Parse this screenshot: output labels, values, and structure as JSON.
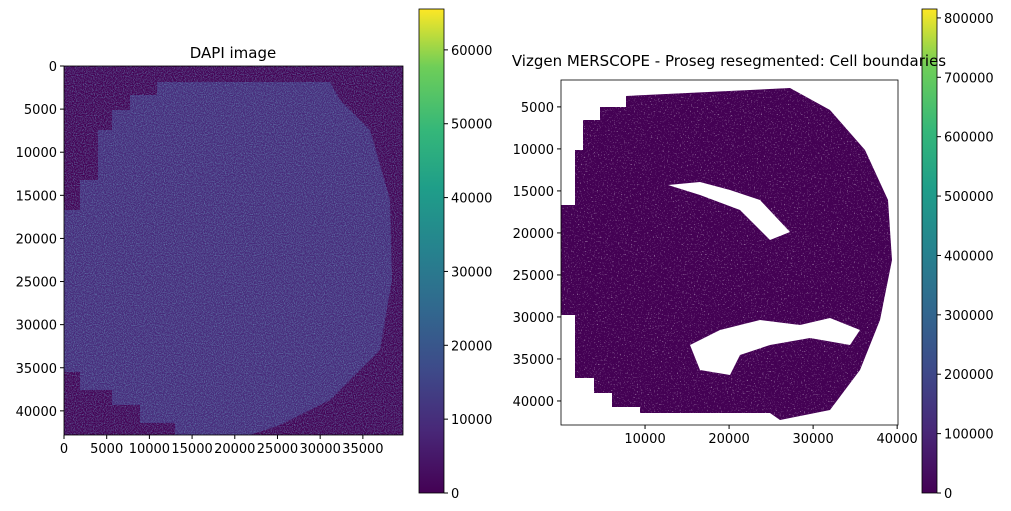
{
  "chart_data": [
    {
      "type": "heatmap",
      "title": "DAPI image",
      "xlim": [
        0,
        39700
      ],
      "ylim": [
        42800,
        0
      ],
      "x_ticks": [
        "0",
        "5000",
        "10000",
        "15000",
        "20000",
        "25000",
        "30000",
        "35000"
      ],
      "y_ticks": [
        "0",
        "5000",
        "10000",
        "15000",
        "20000",
        "25000",
        "30000",
        "35000",
        "40000"
      ],
      "colormap": "viridis",
      "colorbar": {
        "range": [
          0,
          65535
        ],
        "ticks": [
          "0",
          "10000",
          "20000",
          "30000",
          "40000",
          "50000",
          "60000"
        ]
      }
    },
    {
      "type": "heatmap",
      "title": "Vizgen MERSCOPE - Proseg resegmented: Cell boundaries",
      "xlim": [
        0,
        40100
      ],
      "ylim": [
        42860,
        1800
      ],
      "x_ticks": [
        "10000",
        "20000",
        "30000",
        "40000"
      ],
      "y_ticks": [
        "5000",
        "10000",
        "15000",
        "20000",
        "25000",
        "30000",
        "35000",
        "40000"
      ],
      "colormap": "viridis",
      "colorbar": {
        "range": [
          0,
          815000
        ],
        "ticks": [
          "0",
          "100000",
          "200000",
          "300000",
          "400000",
          "500000",
          "600000",
          "700000",
          "800000"
        ]
      }
    }
  ],
  "colors": {
    "viridis_low": "#440154",
    "viridis_mid": "#21918c",
    "viridis_high": "#fde725"
  }
}
